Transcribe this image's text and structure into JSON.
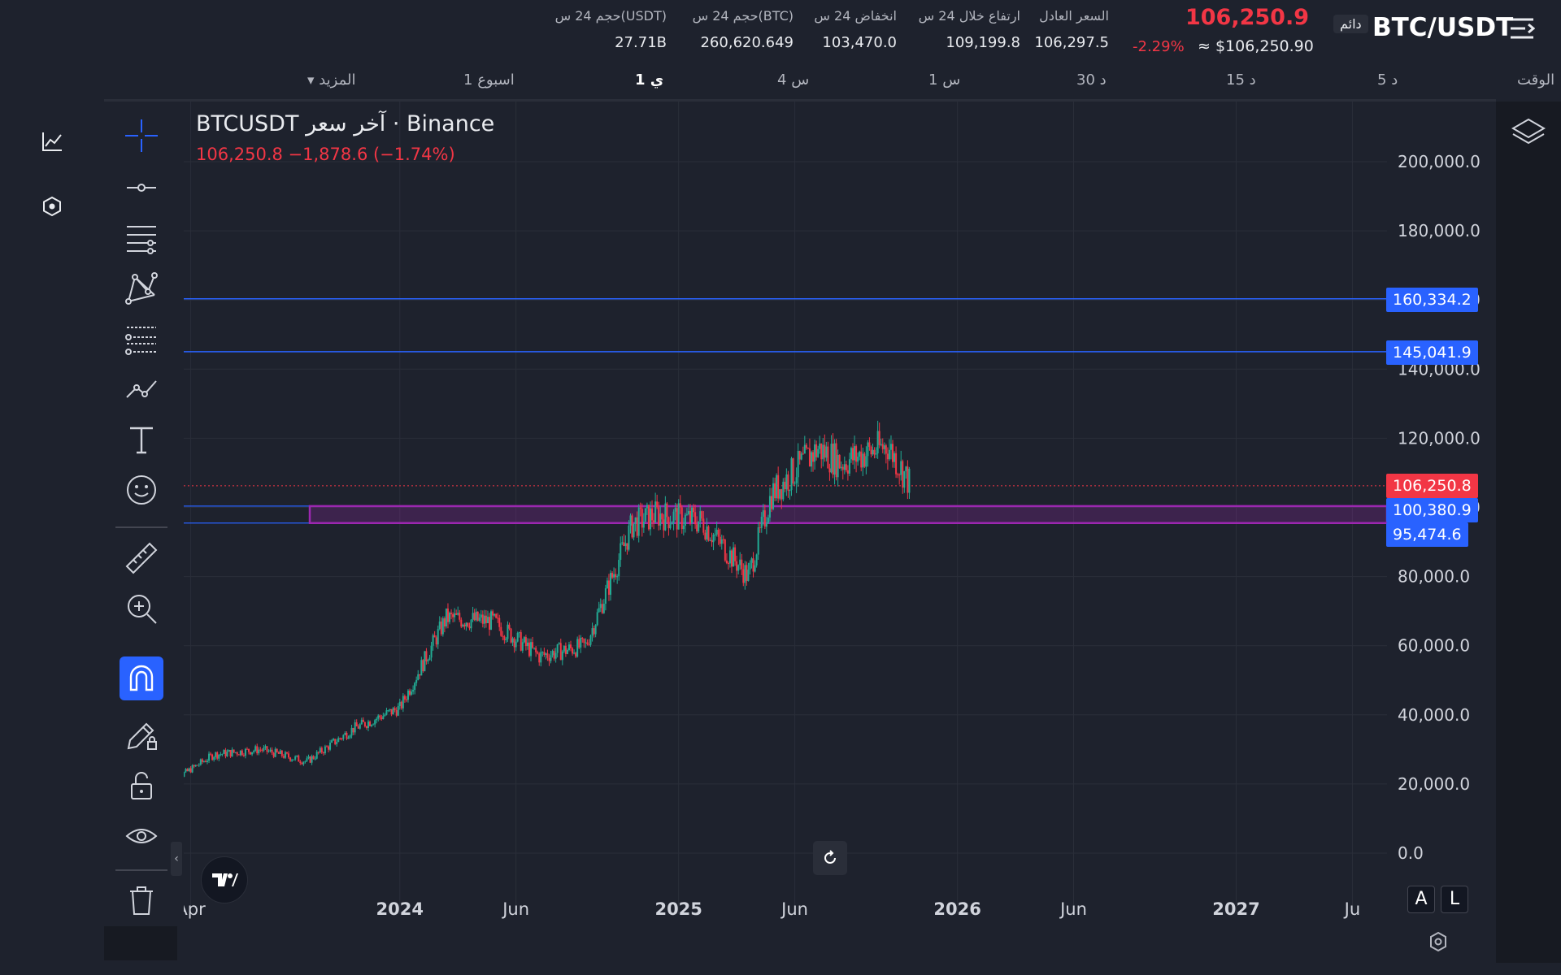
{
  "header": {
    "symbol": "BTC/USDT",
    "contract_type": "دائم",
    "last_price": "106,250.9",
    "change_pct": "-2.29%",
    "usd_price": "≈ $106,250.90",
    "stats": [
      {
        "label": "السعر العادل",
        "value": "106,297.5"
      },
      {
        "label": "ارتفاع خلال 24 س",
        "value": "109,199.8"
      },
      {
        "label": "انخفاض 24 س",
        "value": "103,470.0"
      },
      {
        "label": "حجم 24 س(BTC)",
        "value": "260,620.649"
      },
      {
        "label": "حجم 24 س(USDT)",
        "value": "27.71B"
      }
    ]
  },
  "timeframes": {
    "label": "الوقت",
    "items": [
      "5 د",
      "15 د",
      "30 د",
      "1 س",
      "4 س",
      "1 ي",
      "1 اسبوع"
    ],
    "active": "1 ي",
    "more": "المزيد"
  },
  "chart": {
    "title": "BTCUSDT آخر سعر · Binance",
    "ohlc_line": "106,250.8  −1,878.6 (−1.74%)",
    "price_axis_labels": [
      "200,000.0",
      "180,000.0",
      "160,000.0",
      "140,000.0",
      "120,000.0",
      "100,000.0",
      "80,000.0",
      "60,000.0",
      "40,000.0",
      "20,000.0",
      "0.0"
    ],
    "time_axis_labels": [
      {
        "text": "Apr",
        "bold": false
      },
      {
        "text": "2024",
        "bold": true
      },
      {
        "text": "Jun",
        "bold": false
      },
      {
        "text": "2025",
        "bold": true
      },
      {
        "text": "Jun",
        "bold": false
      },
      {
        "text": "2026",
        "bold": true
      },
      {
        "text": "Jun",
        "bold": false
      },
      {
        "text": "2027",
        "bold": true
      },
      {
        "text": "Ju",
        "bold": false
      }
    ],
    "horizontal_lines": [
      "160,334.2",
      "145,041.9"
    ],
    "current_price_tag": "106,250.8",
    "zone_top_tag": "100,380.9",
    "zone_bottom_tag": "95,474.6",
    "scale_buttons": [
      "A",
      "L"
    ]
  },
  "colors": {
    "up": "#22ab94",
    "down": "#f23645",
    "accent": "#2962ff",
    "zone": "#9c27b0"
  },
  "chart_data": {
    "type": "line",
    "x": [
      "2023-03",
      "2023-05",
      "2023-07",
      "2023-09",
      "2023-11",
      "2024-01",
      "2024-03",
      "2024-05",
      "2024-07",
      "2024-09",
      "2024-11",
      "2024-12",
      "2025-02",
      "2025-04",
      "2025-05",
      "2025-07",
      "2025-08",
      "2025-10",
      "2025-11"
    ],
    "series": [
      {
        "values": [
          20000,
          28500,
          30000,
          26500,
          36000,
          42000,
          68000,
          67000,
          57000,
          60000,
          95000,
          98000,
          96000,
          80000,
          104000,
          117000,
          113000,
          118000,
          106250
        ]
      }
    ],
    "xlim": [
      "2023-03",
      "2027-07"
    ],
    "ylim": [
      -25000,
      212000
    ],
    "grid": true
  }
}
